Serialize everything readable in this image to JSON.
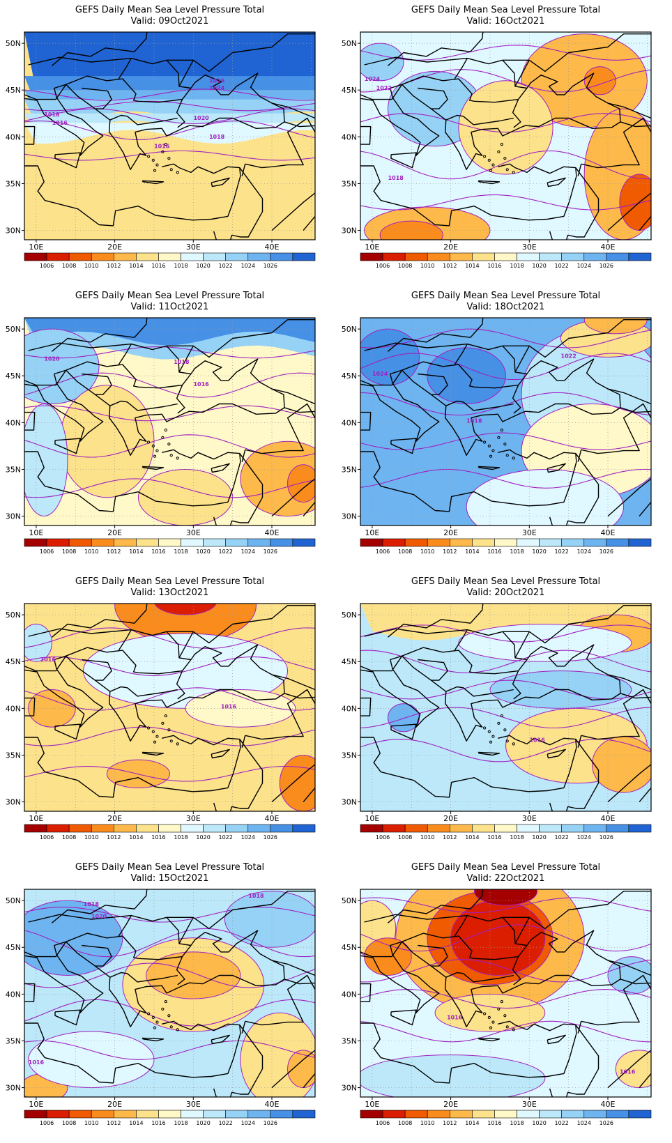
{
  "title": "GEFS Daily Mean Sea Level Pressure Total",
  "lat_ticks": [
    "50N",
    "45N",
    "40N",
    "35N",
    "30N"
  ],
  "lon_ticks": [
    "10E",
    "20E",
    "30E",
    "40E"
  ],
  "colorbar": {
    "labels": [
      "1006",
      "1008",
      "1010",
      "1012",
      "1014",
      "1016",
      "1018",
      "1020",
      "1022",
      "1024",
      "1026"
    ],
    "colors": [
      "#a50000",
      "#dc1e00",
      "#f05a00",
      "#fa8c1e",
      "#fdb94a",
      "#fde28c",
      "#fff8c8",
      "#e0f8ff",
      "#bce8fa",
      "#96d2f5",
      "#6eb4f0",
      "#4690e6",
      "#1f64d2"
    ]
  },
  "contour_color": "#a020c0",
  "coast_color": "#000000",
  "grid_color": "#9a9a9a",
  "panels": [
    {
      "valid": "Valid: 09Oct2021",
      "labels": [
        "1026",
        "1024",
        "1020",
        "1018",
        "1018",
        "1016",
        "1016"
      ]
    },
    {
      "valid": "Valid: 16Oct2021",
      "labels": [
        "1024",
        "1022",
        "1018"
      ]
    },
    {
      "valid": "Valid: 11Oct2021",
      "labels": [
        "1020",
        "1018",
        "1016"
      ]
    },
    {
      "valid": "Valid: 18Oct2021",
      "labels": [
        "1024",
        "1022",
        "1018"
      ]
    },
    {
      "valid": "Valid: 13Oct2021",
      "labels": [
        "1016",
        "1016"
      ]
    },
    {
      "valid": "Valid: 20Oct2021",
      "labels": [
        "1016"
      ]
    },
    {
      "valid": "Valid: 15Oct2021",
      "labels": [
        "1018",
        "1020",
        "1018",
        "1016"
      ]
    },
    {
      "valid": "Valid: 22Oct2021",
      "labels": [
        "1016",
        "1016"
      ]
    }
  ]
}
